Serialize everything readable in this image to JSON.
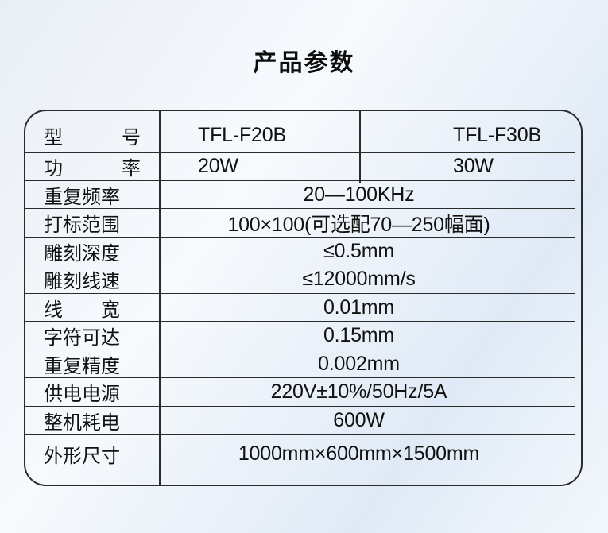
{
  "page": {
    "title": "产品参数"
  },
  "colors": {
    "background_light": "#f7fafd",
    "background_blue": "#e0eaf6",
    "table_line": "#2b2b2b",
    "text": "#111111"
  },
  "table": {
    "model_row": {
      "label": "型 号",
      "model_a": "TFL-F20B",
      "model_b": "TFL-F30B"
    },
    "power_row": {
      "label": "功 率",
      "power_a": "20W",
      "power_b": "30W"
    },
    "rows": [
      {
        "label": "重复频率",
        "value": "20—100KHz"
      },
      {
        "label": "打标范围",
        "value": "100×100(可选配70—250幅面)"
      },
      {
        "label": "雕刻深度",
        "value": "≤0.5mm"
      },
      {
        "label": "雕刻线速",
        "value": "≤12000mm/s"
      },
      {
        "label": "线 宽",
        "value": "0.01mm"
      },
      {
        "label": "字符可达",
        "value": "0.15mm"
      },
      {
        "label": "重复精度",
        "value": "0.002mm"
      },
      {
        "label": "供电电源",
        "value": "220V±10%/50Hz/5A"
      },
      {
        "label": "整机耗电",
        "value": "600W"
      },
      {
        "label": "外形尺寸",
        "value": "1000mm×600mm×1500mm"
      }
    ]
  }
}
